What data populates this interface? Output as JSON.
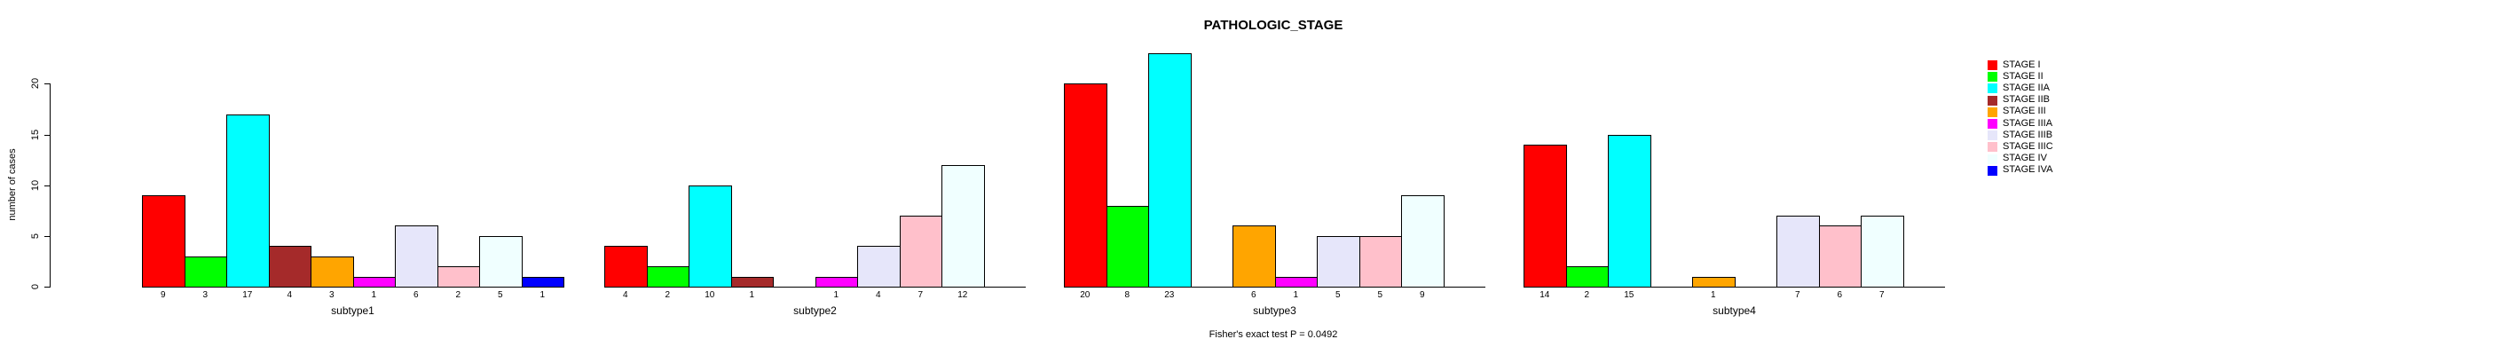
{
  "chart_data": {
    "type": "bar",
    "title": "PATHOLOGIC_STAGE",
    "annotation": "Fisher's exact test P = 0.0492",
    "xlabel": "",
    "ylabel": "number of cases",
    "ylim": [
      0,
      20
    ],
    "yticks": [
      0,
      5,
      10,
      15,
      20
    ],
    "grid": false,
    "legend_position": "right",
    "categories": [
      "subtype1",
      "subtype2",
      "subtype3",
      "subtype4"
    ],
    "series": [
      {
        "name": "STAGE I",
        "color": "#FF0000",
        "values": [
          9,
          4,
          20,
          14
        ]
      },
      {
        "name": "STAGE II",
        "color": "#00FF00",
        "values": [
          3,
          2,
          8,
          2
        ]
      },
      {
        "name": "STAGE IIA",
        "color": "#00FFFF",
        "values": [
          17,
          10,
          23,
          15
        ]
      },
      {
        "name": "STAGE IIB",
        "color": "#A52A2A",
        "values": [
          4,
          1,
          0,
          0
        ]
      },
      {
        "name": "STAGE III",
        "color": "#FFA500",
        "values": [
          3,
          0,
          6,
          1
        ]
      },
      {
        "name": "STAGE IIIA",
        "color": "#FF00FF",
        "values": [
          1,
          1,
          1,
          0
        ]
      },
      {
        "name": "STAGE IIIB",
        "color": "#E6E6FA",
        "values": [
          6,
          4,
          5,
          7
        ]
      },
      {
        "name": "STAGE IIIC",
        "color": "#FFC0CB",
        "values": [
          2,
          7,
          5,
          6
        ]
      },
      {
        "name": "STAGE IV",
        "color": "#F0FFFF",
        "values": [
          5,
          12,
          9,
          7
        ]
      },
      {
        "name": "STAGE IVA",
        "color": "#0000FF",
        "values": [
          1,
          0,
          0,
          0
        ]
      }
    ],
    "bar_value_labels_shown_only_when_nonzero": true
  }
}
